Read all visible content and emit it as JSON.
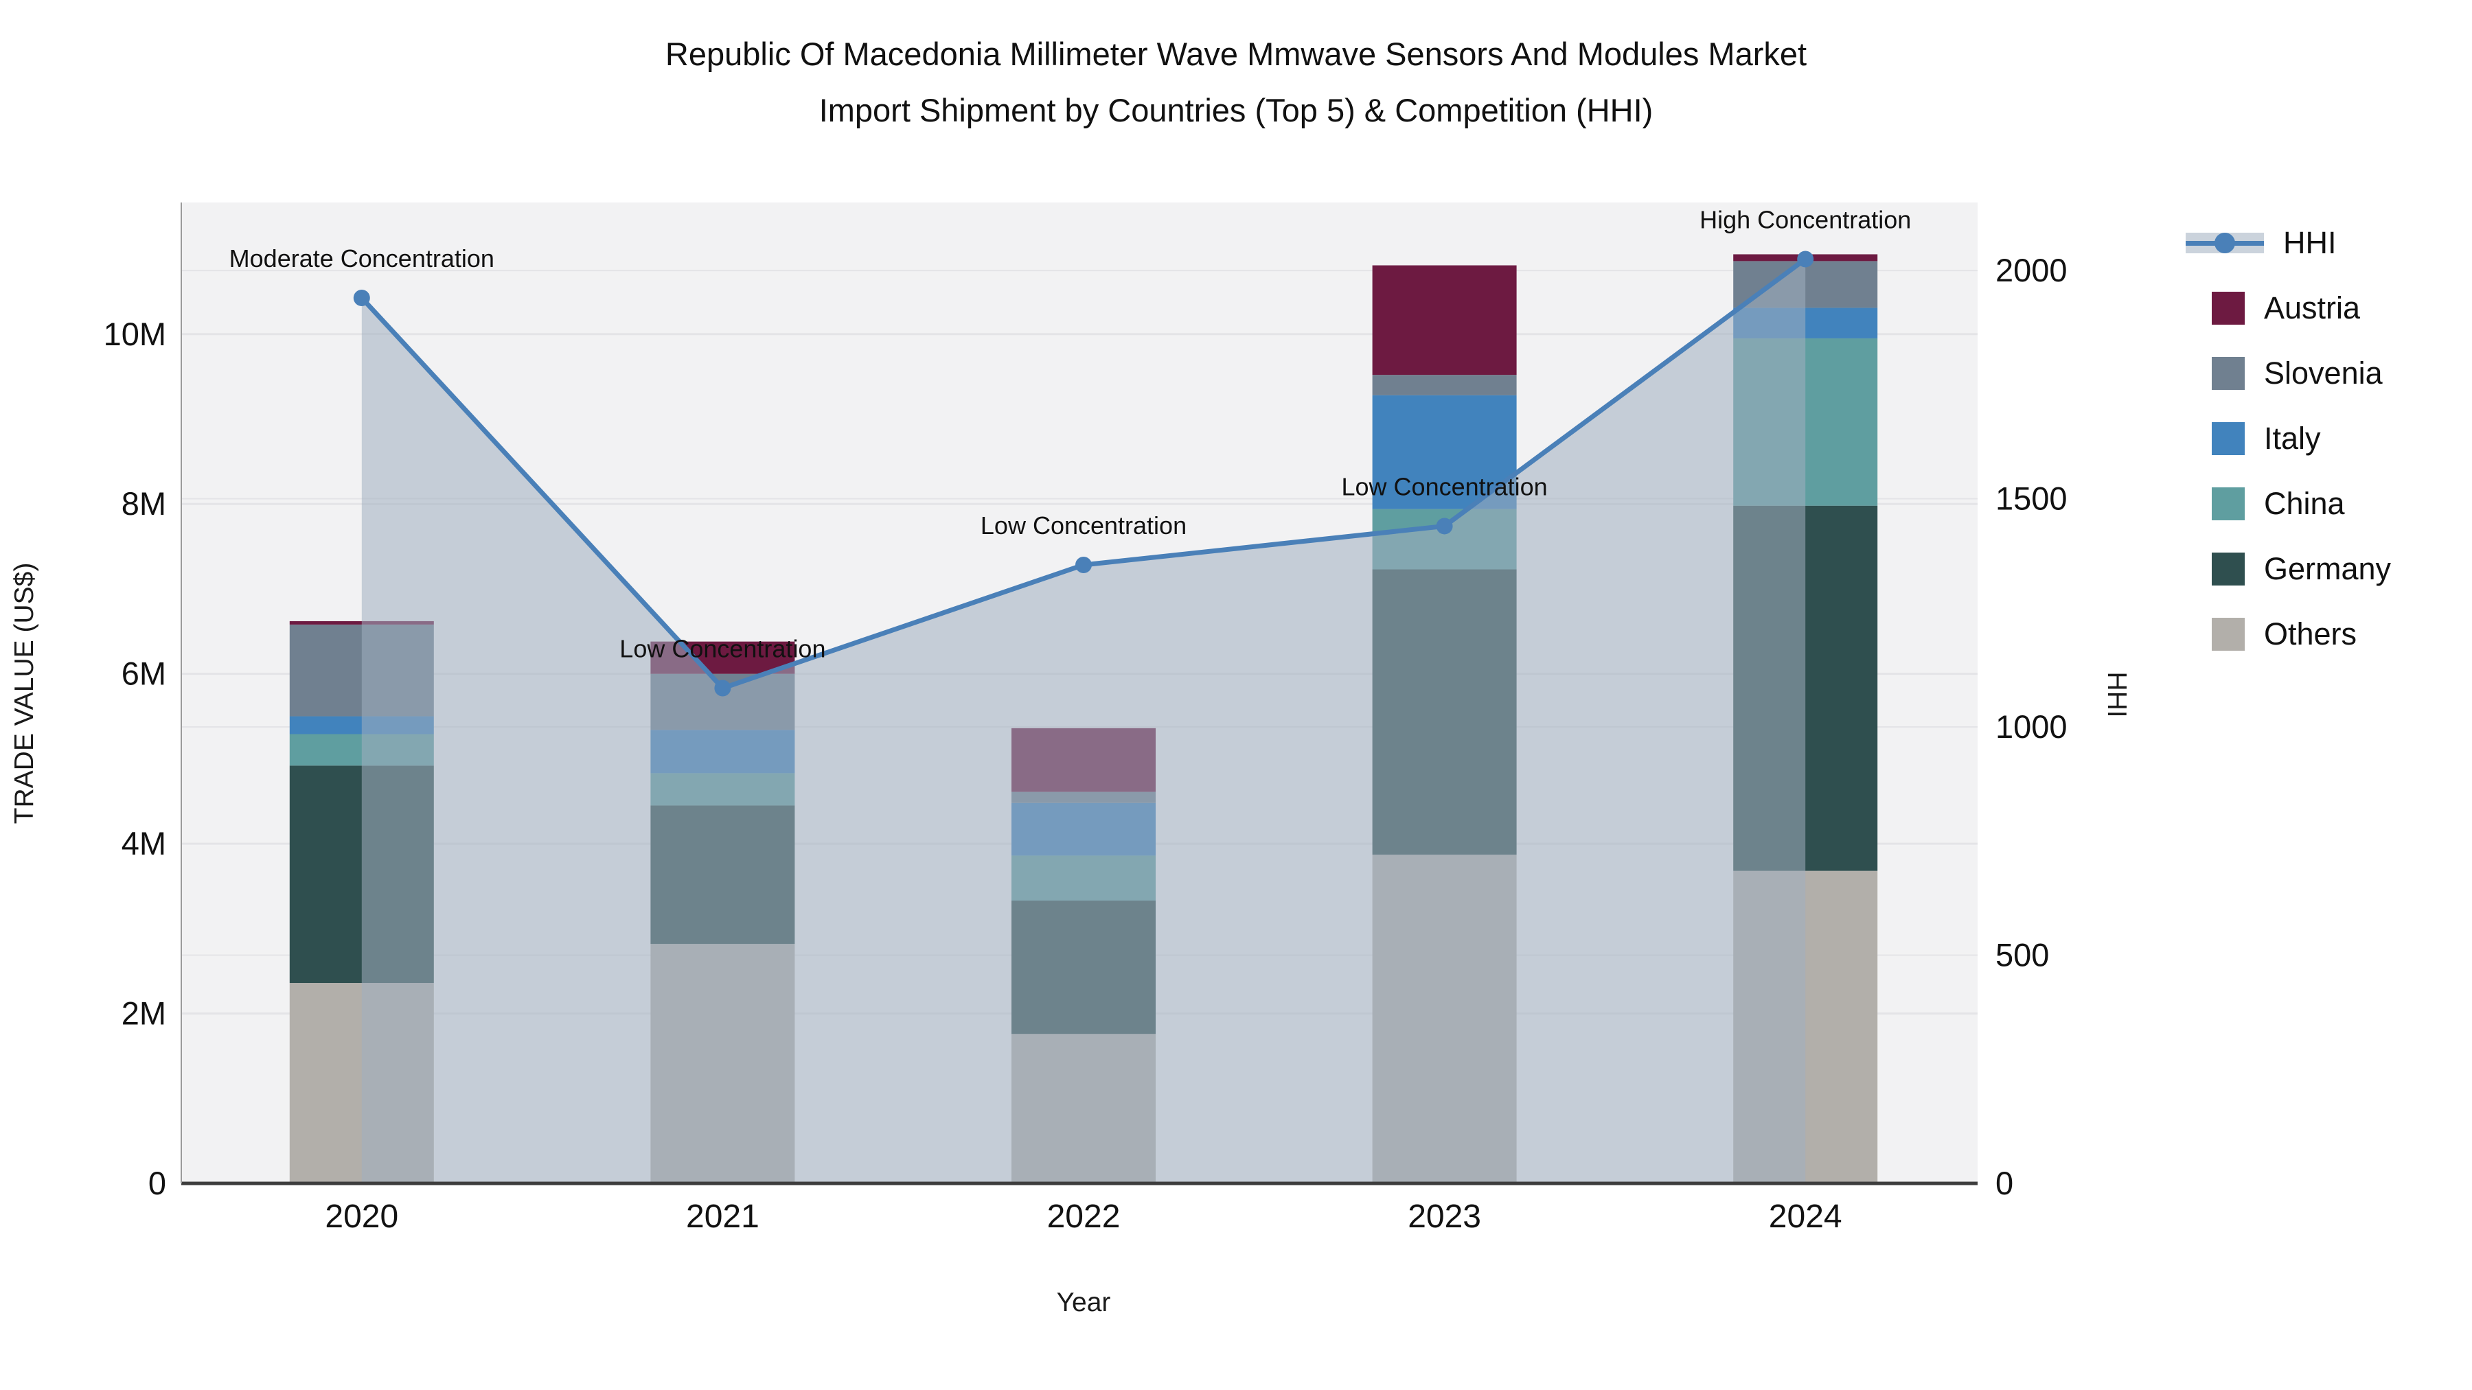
{
  "title": {
    "line1": "Republic Of Macedonia Millimeter Wave Mmwave Sensors And Modules Market",
    "line2": "Import Shipment by Countries (Top 5) & Competition (HHI)"
  },
  "axes": {
    "x_title": "Year",
    "y_left_title": "TRADE VALUE (US$)",
    "y_right_title": "HHI",
    "y_left_tick_labels": [
      "0",
      "2M",
      "4M",
      "6M",
      "8M",
      "10M"
    ],
    "y_left_tick_values_musd": [
      0,
      2,
      4,
      6,
      8,
      10
    ],
    "y_right_tick_labels": [
      "0",
      "500",
      "1000",
      "1500",
      "2000"
    ],
    "y_right_tick_values": [
      0,
      500,
      1000,
      1500,
      2000
    ]
  },
  "chart_data": {
    "type": "combo: stacked bar (left axis) + line with markers (right axis)",
    "title": "Republic Of Macedonia Millimeter Wave Mmwave Sensors And Modules Market Import Shipment by Countries (Top 5) & Competition (HHI)",
    "xlabel": "Year",
    "ylabel_left": "TRADE VALUE (US$)",
    "ylabel_right": "HHI",
    "categories": [
      "2020",
      "2021",
      "2022",
      "2023",
      "2024"
    ],
    "bar_unit": "US$ millions (read from left axis)",
    "series": [
      {
        "name": "Austria",
        "color": "#6d1a41",
        "values_musd": [
          0.04,
          0.38,
          0.75,
          1.29,
          0.08
        ]
      },
      {
        "name": "Slovenia",
        "color": "#708090",
        "values_musd": [
          1.08,
          0.66,
          0.13,
          0.24,
          0.55
        ]
      },
      {
        "name": "Italy",
        "color": "#4183bd",
        "values_musd": [
          0.21,
          0.51,
          0.62,
          1.34,
          0.36
        ]
      },
      {
        "name": "China",
        "color": "#5f9ea0",
        "values_musd": [
          0.37,
          0.38,
          0.53,
          0.71,
          1.97
        ]
      },
      {
        "name": "Germany",
        "color": "#2f4f4f",
        "values_musd": [
          2.56,
          1.63,
          1.57,
          3.36,
          4.3
        ]
      },
      {
        "name": "Others",
        "color": "#b2afaa",
        "values_musd": [
          2.36,
          2.82,
          1.76,
          3.87,
          3.68
        ]
      }
    ],
    "bar_totals_musd": [
      6.62,
      6.38,
      5.36,
      10.81,
      10.94
    ],
    "hhi_line": {
      "name": "HHI",
      "values": [
        1940,
        1085,
        1355,
        1440,
        2025
      ],
      "line_color": "#4a80b8",
      "marker_color": "#4a80b8",
      "area_band_color": "rgba(160,174,192,0.55)"
    },
    "annotations": [
      {
        "category": "2020",
        "text": "Moderate Concentration"
      },
      {
        "category": "2021",
        "text": "Low Concentration"
      },
      {
        "category": "2022",
        "text": "Low Concentration"
      },
      {
        "category": "2023",
        "text": "Low Concentration"
      },
      {
        "category": "2024",
        "text": "High Concentration"
      }
    ],
    "ylim_left_musd": [
      0,
      11.55
    ],
    "ylim_right": [
      0,
      2149
    ],
    "grid": true,
    "legend_position": "right",
    "plot_bg_color": "#f2f2f3",
    "gridline_color": "#e4e4e7",
    "axis_line_color": "#3d3d3d",
    "left_axis_line_color": "#9b9b9b"
  },
  "legend": {
    "items": [
      "HHI",
      "Austria",
      "Slovenia",
      "Italy",
      "China",
      "Germany",
      "Others"
    ]
  }
}
